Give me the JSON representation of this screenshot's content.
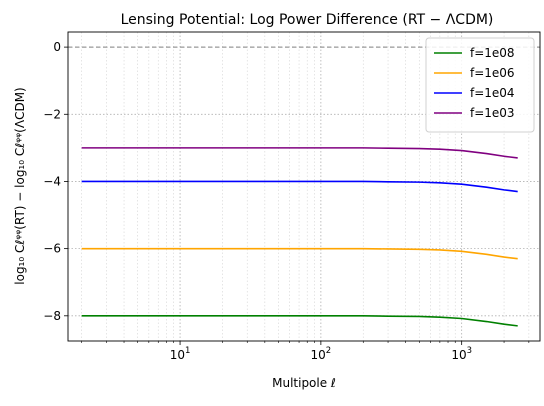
{
  "chart_data": {
    "type": "line",
    "title": "Lensing Potential: Log Power Difference (RT − ΛCDM)",
    "xlabel": "Multipole ℓ",
    "ylabel": "log₁₀ Cℓᵠᵠ(RT) − log₁₀ Cℓᵠᵠ(ΛCDM)",
    "x_scale": "log",
    "xlim": [
      1.6,
      3600
    ],
    "ylim": [
      -8.75,
      0.45
    ],
    "grid": "on (major and minor, dotted)",
    "legend_position": "top-right",
    "reference_line": {
      "y": 0,
      "style": "dashed",
      "color": "#808080"
    },
    "x_tick_labels": [
      {
        "value": 10,
        "base": "10",
        "exp": "1"
      },
      {
        "value": 100,
        "base": "10",
        "exp": "2"
      },
      {
        "value": 1000,
        "base": "10",
        "exp": "3"
      }
    ],
    "y_ticks": [
      0,
      -2,
      -4,
      -6,
      -8
    ],
    "y_tick_labels": [
      "0",
      "−2",
      "−4",
      "−6",
      "−8"
    ],
    "x": [
      2,
      5,
      10,
      20,
      50,
      100,
      200,
      300,
      500,
      700,
      1000,
      1500,
      2000,
      2500
    ],
    "series": [
      {
        "name": "f=1e08",
        "color": "#008000",
        "values": [
          -8.0,
          -8.0,
          -8.0,
          -8.0,
          -8.0,
          -8.0,
          -8.0,
          -8.01,
          -8.02,
          -8.04,
          -8.08,
          -8.17,
          -8.25,
          -8.3
        ]
      },
      {
        "name": "f=1e06",
        "color": "#ffa500",
        "values": [
          -6.0,
          -6.0,
          -6.0,
          -6.0,
          -6.0,
          -6.0,
          -6.0,
          -6.01,
          -6.02,
          -6.04,
          -6.08,
          -6.17,
          -6.25,
          -6.3
        ]
      },
      {
        "name": "f=1e04",
        "color": "#0000ff",
        "values": [
          -4.0,
          -4.0,
          -4.0,
          -4.0,
          -4.0,
          -4.0,
          -4.0,
          -4.01,
          -4.02,
          -4.04,
          -4.08,
          -4.17,
          -4.25,
          -4.3
        ]
      },
      {
        "name": "f=1e03",
        "color": "#800080",
        "values": [
          -3.0,
          -3.0,
          -3.0,
          -3.0,
          -3.0,
          -3.0,
          -3.0,
          -3.01,
          -3.02,
          -3.04,
          -3.08,
          -3.17,
          -3.25,
          -3.3
        ]
      }
    ]
  }
}
